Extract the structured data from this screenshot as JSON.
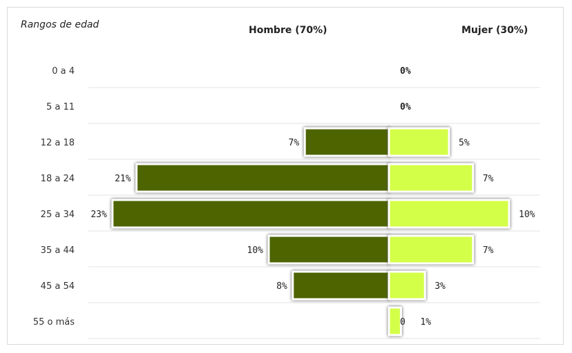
{
  "chart_data": {
    "type": "bar",
    "orientation": "horizontal",
    "layout": "population-pyramid",
    "category_header": "Rangos de edad",
    "categories": [
      "0 a 4",
      "5 a 11",
      "12 a 18",
      "18 a 24",
      "25 a 34",
      "35 a 44",
      "45 a 54",
      "55 o más"
    ],
    "series": [
      {
        "name": "Hombre (70%)",
        "values": [
          0,
          0,
          7,
          21,
          23,
          10,
          8,
          0
        ],
        "labels": [
          "",
          "",
          "7%",
          "21%",
          "23%",
          "10%",
          "8%",
          "0"
        ],
        "color": "#4d6400",
        "direction": "left"
      },
      {
        "name": "Mujer (30%)",
        "values": [
          0,
          0,
          5,
          7,
          10,
          7,
          3,
          1
        ],
        "labels": [
          "",
          "",
          "5%",
          "7%",
          "10%",
          "7%",
          "3%",
          "1%"
        ],
        "color": "#d4ff48",
        "direction": "right"
      }
    ],
    "combined_labels": [
      "0%",
      "0%",
      "",
      "",
      "",
      "",
      "",
      ""
    ],
    "grid": true,
    "legend": "none"
  }
}
